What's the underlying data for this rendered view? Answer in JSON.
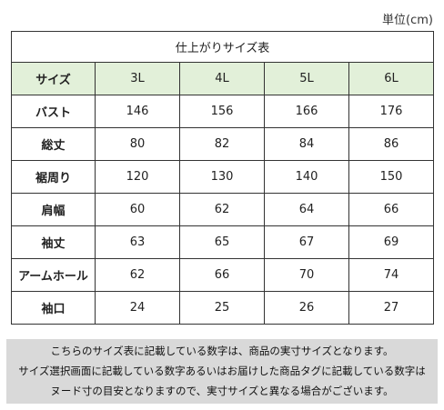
{
  "unit_label": "単位(cm)",
  "table": {
    "caption": "仕上がりサイズ表",
    "header": [
      "サイズ",
      "3L",
      "4L",
      "5L",
      "6L"
    ],
    "rows": [
      {
        "label": "バスト",
        "values": [
          "146",
          "156",
          "166",
          "176"
        ]
      },
      {
        "label": "総丈",
        "values": [
          "80",
          "82",
          "84",
          "86"
        ]
      },
      {
        "label": "裾周り",
        "values": [
          "120",
          "130",
          "140",
          "150"
        ]
      },
      {
        "label": "肩幅",
        "values": [
          "60",
          "62",
          "64",
          "66"
        ]
      },
      {
        "label": "袖丈",
        "values": [
          "63",
          "65",
          "67",
          "69"
        ]
      },
      {
        "label": "アームホール",
        "values": [
          "62",
          "66",
          "70",
          "74"
        ]
      },
      {
        "label": "袖口",
        "values": [
          "24",
          "25",
          "26",
          "27"
        ]
      }
    ]
  },
  "notes": [
    "こちらのサイズ表に記載している数字は、商品の実寸サイズとなります。",
    "サイズ選択画面に記載している数字あるいはお届けした商品タグに記載している数字は",
    "ヌード寸の目安となりますので、実寸サイズと異なる場合がございます。"
  ],
  "colors": {
    "header_background": "#e2f0d9",
    "note_background": "#d9d9d9",
    "border": "#333333"
  }
}
